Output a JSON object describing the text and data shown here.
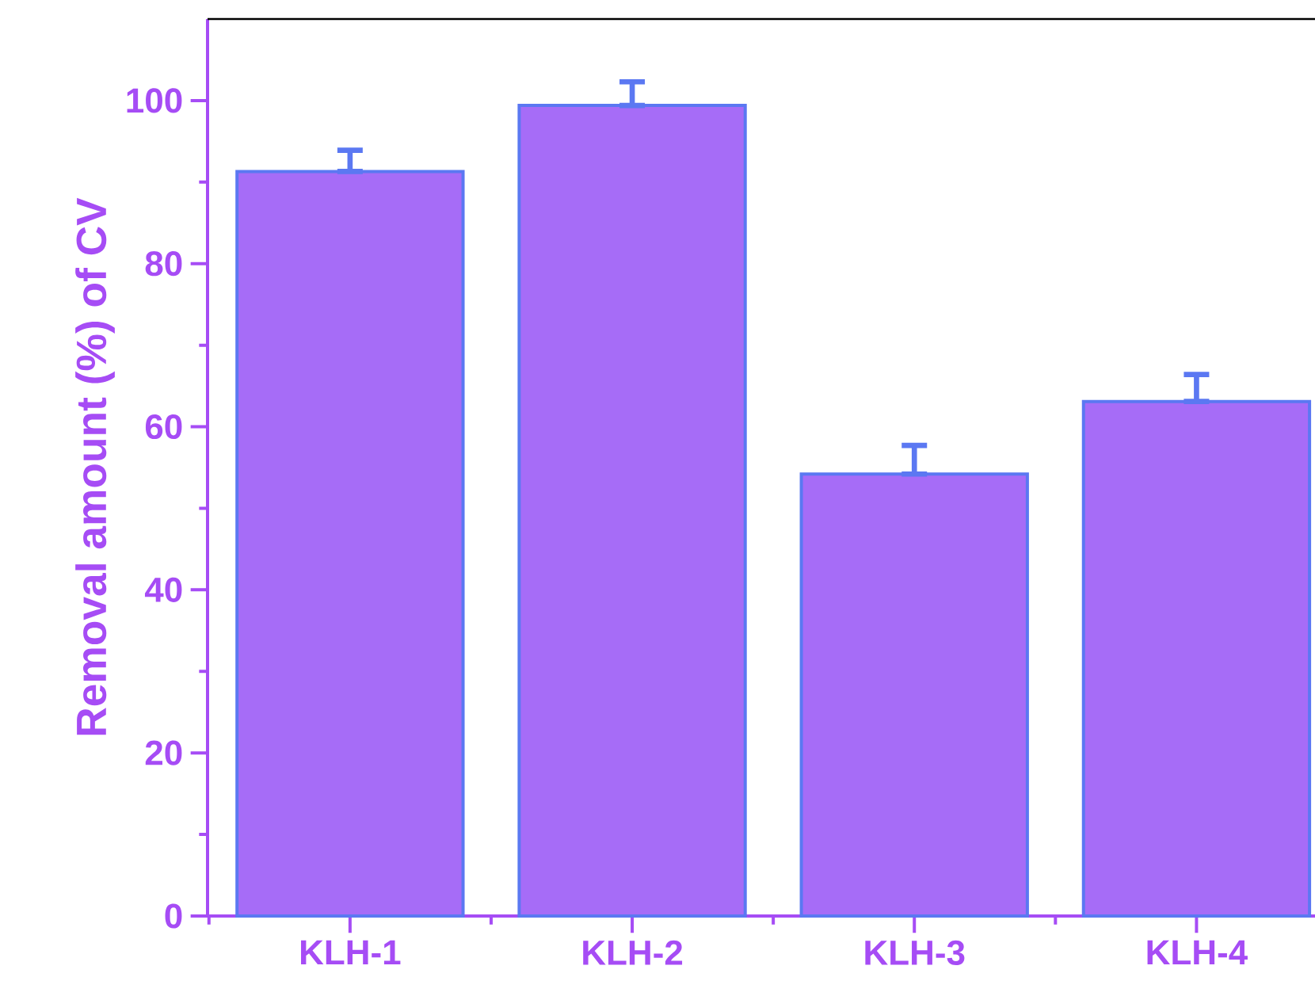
{
  "chart_data": {
    "type": "bar",
    "ylabel": "Removal amount (%) of CV",
    "categories": [
      "KLH-1",
      "KLH-2",
      "KLH-3",
      "KLH-4"
    ],
    "values": [
      91.3,
      99.4,
      54.2,
      63.1
    ],
    "errors": [
      [
        91.3,
        93.9
      ],
      [
        99.4,
        102.3
      ],
      [
        54.2,
        57.7
      ],
      [
        63.1,
        66.4
      ]
    ],
    "color": "#a66cf7",
    "ylim": [
      0,
      110
    ],
    "yticks": [
      0,
      20,
      40,
      60,
      80,
      100
    ],
    "grid": false
  }
}
